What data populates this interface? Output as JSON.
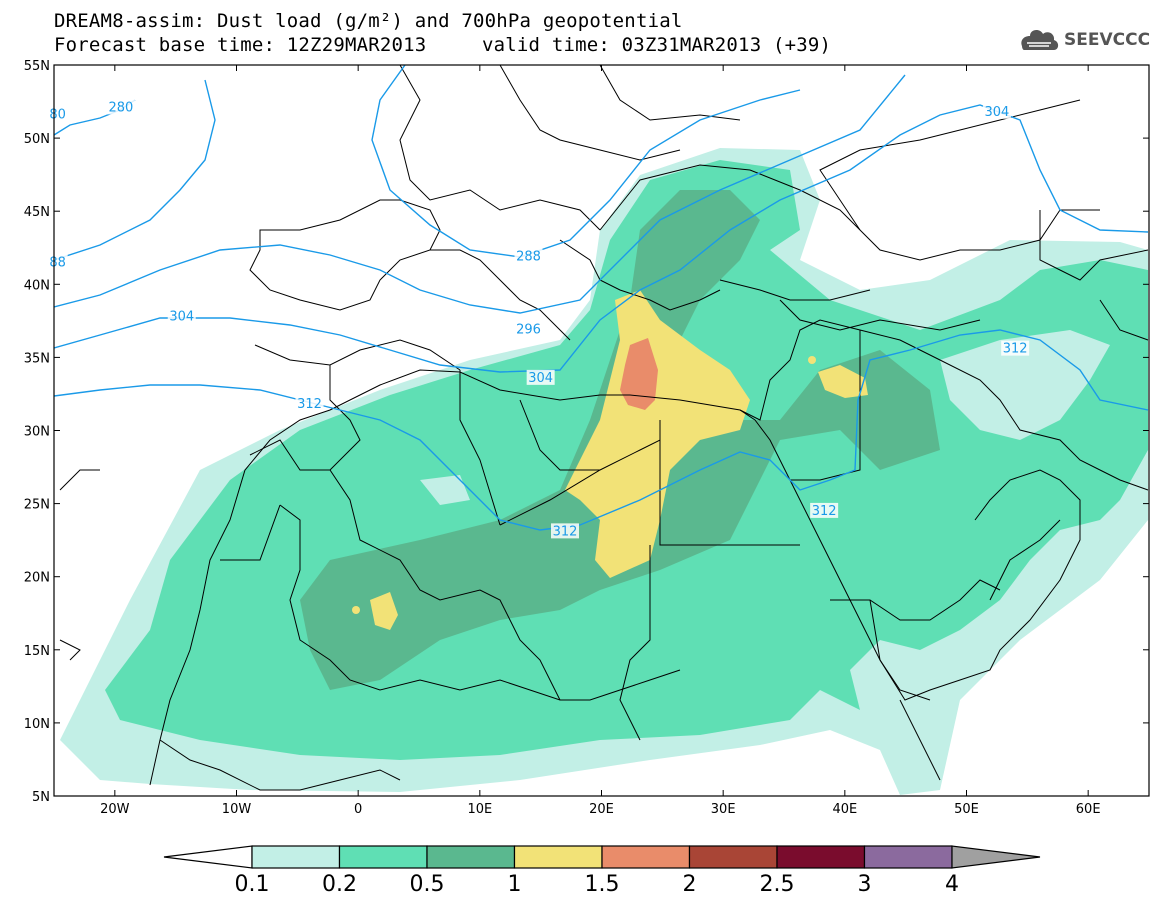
{
  "header": {
    "title": "DREAM8-assim: Dust load (g/m²) and 700hPa geopotential",
    "base_time": "Forecast base time: 12Z29MAR2013",
    "valid_time": "valid time: 03Z31MAR2013 (+39)"
  },
  "logo": {
    "text": "SEEVCCC",
    "icon": "cloud-icon"
  },
  "axes": {
    "lat_labels": [
      "55N",
      "50N",
      "45N",
      "40N",
      "35N",
      "30N",
      "25N",
      "20N",
      "15N",
      "10N",
      "5N"
    ],
    "lat_values": [
      55,
      50,
      45,
      40,
      35,
      30,
      25,
      20,
      15,
      10,
      5
    ],
    "lon_labels": [
      "20W",
      "10W",
      "0",
      "10E",
      "20E",
      "30E",
      "40E",
      "50E",
      "60E"
    ],
    "lon_values": [
      -20,
      -10,
      0,
      10,
      20,
      30,
      40,
      50,
      60
    ],
    "lon_range": [
      -25,
      65
    ],
    "lat_range": [
      5,
      55
    ]
  },
  "contour_labels": [
    {
      "text": "280",
      "lon": -19.5,
      "lat": 52.1
    },
    {
      "text": "80",
      "lon": -24.7,
      "lat": 51.6
    },
    {
      "text": "88",
      "lon": -24.7,
      "lat": 41.5
    },
    {
      "text": "288",
      "lon": 14,
      "lat": 41.9
    },
    {
      "text": "296",
      "lon": 14,
      "lat": 36.9
    },
    {
      "text": "304",
      "lon": -14.5,
      "lat": 37.8
    },
    {
      "text": "304",
      "lon": 15,
      "lat": 33.6
    },
    {
      "text": "304",
      "lon": 52.5,
      "lat": 51.8
    },
    {
      "text": "312",
      "lon": -4,
      "lat": 31.8
    },
    {
      "text": "312",
      "lon": 17,
      "lat": 23.1
    },
    {
      "text": "312",
      "lon": 38.3,
      "lat": 24.5
    },
    {
      "text": "312",
      "lon": 54,
      "lat": 35.6
    }
  ],
  "colorbar": {
    "tick_labels": [
      "0.1",
      "0.2",
      "0.5",
      "1",
      "1.5",
      "2",
      "2.5",
      "3",
      "4"
    ],
    "colors": [
      "#ffffff",
      "#c2efe6",
      "#5fdfb4",
      "#5ab88f",
      "#f2e277",
      "#e98c6a",
      "#a94536",
      "#7a0c2d",
      "#8b6a9e",
      "#a0a0a0"
    ]
  },
  "colors": {
    "c01": "#c2efe6",
    "c02": "#5fdfb4",
    "c05": "#5ab88f",
    "c1": "#f2e277",
    "c15": "#e98c6a",
    "contour": "#1a9ae8",
    "border": "#000000"
  }
}
